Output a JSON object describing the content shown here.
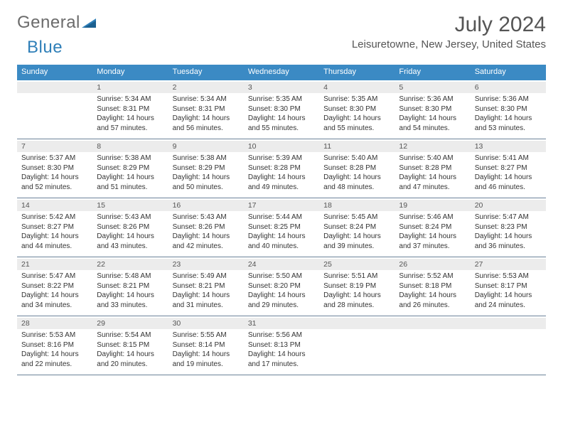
{
  "logo": {
    "part1": "General",
    "part2": "Blue"
  },
  "title": "July 2024",
  "location": "Leisuretowne, New Jersey, United States",
  "colors": {
    "header_bg": "#3b8ac4",
    "daynum_bg": "#ececec",
    "row_border": "#6b8299",
    "logo_grey": "#6b6b6b",
    "logo_blue": "#2f7fb8",
    "text": "#333333"
  },
  "fonts": {
    "title_size_pt": 22,
    "location_size_pt": 11,
    "header_size_pt": 8,
    "cell_size_pt": 7.5
  },
  "dayNames": [
    "Sunday",
    "Monday",
    "Tuesday",
    "Wednesday",
    "Thursday",
    "Friday",
    "Saturday"
  ],
  "weeks": [
    [
      null,
      {
        "n": "1",
        "sr": "5:34 AM",
        "ss": "8:31 PM",
        "dl": "14 hours and 57 minutes."
      },
      {
        "n": "2",
        "sr": "5:34 AM",
        "ss": "8:31 PM",
        "dl": "14 hours and 56 minutes."
      },
      {
        "n": "3",
        "sr": "5:35 AM",
        "ss": "8:30 PM",
        "dl": "14 hours and 55 minutes."
      },
      {
        "n": "4",
        "sr": "5:35 AM",
        "ss": "8:30 PM",
        "dl": "14 hours and 55 minutes."
      },
      {
        "n": "5",
        "sr": "5:36 AM",
        "ss": "8:30 PM",
        "dl": "14 hours and 54 minutes."
      },
      {
        "n": "6",
        "sr": "5:36 AM",
        "ss": "8:30 PM",
        "dl": "14 hours and 53 minutes."
      }
    ],
    [
      {
        "n": "7",
        "sr": "5:37 AM",
        "ss": "8:30 PM",
        "dl": "14 hours and 52 minutes."
      },
      {
        "n": "8",
        "sr": "5:38 AM",
        "ss": "8:29 PM",
        "dl": "14 hours and 51 minutes."
      },
      {
        "n": "9",
        "sr": "5:38 AM",
        "ss": "8:29 PM",
        "dl": "14 hours and 50 minutes."
      },
      {
        "n": "10",
        "sr": "5:39 AM",
        "ss": "8:28 PM",
        "dl": "14 hours and 49 minutes."
      },
      {
        "n": "11",
        "sr": "5:40 AM",
        "ss": "8:28 PM",
        "dl": "14 hours and 48 minutes."
      },
      {
        "n": "12",
        "sr": "5:40 AM",
        "ss": "8:28 PM",
        "dl": "14 hours and 47 minutes."
      },
      {
        "n": "13",
        "sr": "5:41 AM",
        "ss": "8:27 PM",
        "dl": "14 hours and 46 minutes."
      }
    ],
    [
      {
        "n": "14",
        "sr": "5:42 AM",
        "ss": "8:27 PM",
        "dl": "14 hours and 44 minutes."
      },
      {
        "n": "15",
        "sr": "5:43 AM",
        "ss": "8:26 PM",
        "dl": "14 hours and 43 minutes."
      },
      {
        "n": "16",
        "sr": "5:43 AM",
        "ss": "8:26 PM",
        "dl": "14 hours and 42 minutes."
      },
      {
        "n": "17",
        "sr": "5:44 AM",
        "ss": "8:25 PM",
        "dl": "14 hours and 40 minutes."
      },
      {
        "n": "18",
        "sr": "5:45 AM",
        "ss": "8:24 PM",
        "dl": "14 hours and 39 minutes."
      },
      {
        "n": "19",
        "sr": "5:46 AM",
        "ss": "8:24 PM",
        "dl": "14 hours and 37 minutes."
      },
      {
        "n": "20",
        "sr": "5:47 AM",
        "ss": "8:23 PM",
        "dl": "14 hours and 36 minutes."
      }
    ],
    [
      {
        "n": "21",
        "sr": "5:47 AM",
        "ss": "8:22 PM",
        "dl": "14 hours and 34 minutes."
      },
      {
        "n": "22",
        "sr": "5:48 AM",
        "ss": "8:21 PM",
        "dl": "14 hours and 33 minutes."
      },
      {
        "n": "23",
        "sr": "5:49 AM",
        "ss": "8:21 PM",
        "dl": "14 hours and 31 minutes."
      },
      {
        "n": "24",
        "sr": "5:50 AM",
        "ss": "8:20 PM",
        "dl": "14 hours and 29 minutes."
      },
      {
        "n": "25",
        "sr": "5:51 AM",
        "ss": "8:19 PM",
        "dl": "14 hours and 28 minutes."
      },
      {
        "n": "26",
        "sr": "5:52 AM",
        "ss": "8:18 PM",
        "dl": "14 hours and 26 minutes."
      },
      {
        "n": "27",
        "sr": "5:53 AM",
        "ss": "8:17 PM",
        "dl": "14 hours and 24 minutes."
      }
    ],
    [
      {
        "n": "28",
        "sr": "5:53 AM",
        "ss": "8:16 PM",
        "dl": "14 hours and 22 minutes."
      },
      {
        "n": "29",
        "sr": "5:54 AM",
        "ss": "8:15 PM",
        "dl": "14 hours and 20 minutes."
      },
      {
        "n": "30",
        "sr": "5:55 AM",
        "ss": "8:14 PM",
        "dl": "14 hours and 19 minutes."
      },
      {
        "n": "31",
        "sr": "5:56 AM",
        "ss": "8:13 PM",
        "dl": "14 hours and 17 minutes."
      },
      null,
      null,
      null
    ]
  ],
  "labels": {
    "sunrise": "Sunrise: ",
    "sunset": "Sunset: ",
    "daylight": "Daylight: "
  }
}
